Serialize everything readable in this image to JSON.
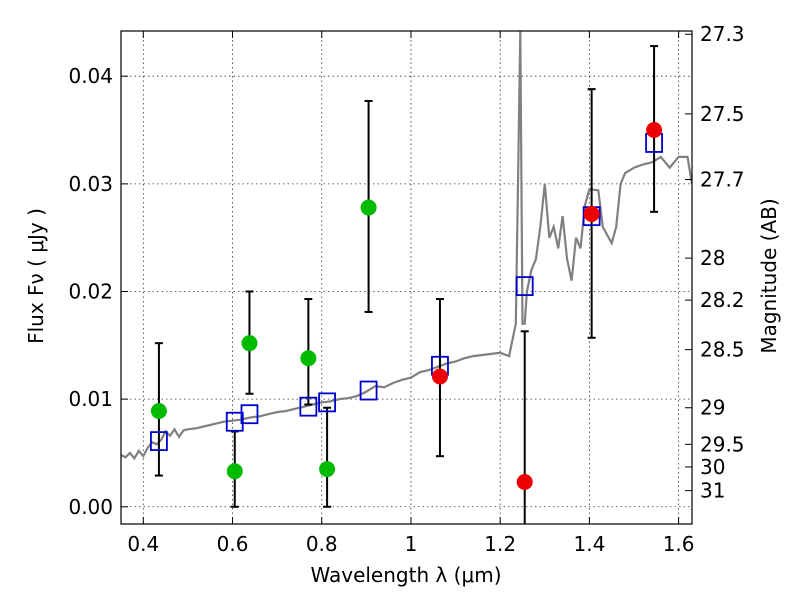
{
  "chart_data": {
    "type": "scatter",
    "title": "",
    "xlabel": "Wavelength  λ (μm)",
    "ylabel": "Flux  Fν  ( μJy )",
    "ylabel_right": "Magnitude (AB)",
    "xlim": [
      0.35,
      1.63
    ],
    "ylim": [
      -0.0016,
      0.0442
    ],
    "x_ticks": [
      0.4,
      0.6,
      0.8,
      1.0,
      1.2,
      1.4,
      1.6
    ],
    "x_tick_labels": [
      "0.4",
      "0.6",
      "0.8",
      "1",
      "1.2",
      "1.4",
      "1.6"
    ],
    "y_ticks": [
      0.0,
      0.01,
      0.02,
      0.03,
      0.04
    ],
    "y_tick_labels": [
      "0.00",
      "0.01",
      "0.02",
      "0.03",
      "0.04"
    ],
    "right_ticks": [
      {
        "mag": "27.3",
        "flux": 0.0439
      },
      {
        "mag": "27.5",
        "flux": 0.0365
      },
      {
        "mag": "27.7",
        "flux": 0.0304
      },
      {
        "mag": "28",
        "flux": 0.0231
      },
      {
        "mag": "28.2",
        "flux": 0.0192
      },
      {
        "mag": "28.5",
        "flux": 0.0146
      },
      {
        "mag": "29",
        "flux": 0.0092
      },
      {
        "mag": "29.5",
        "flux": 0.0058
      },
      {
        "mag": "30",
        "flux": 0.0037
      },
      {
        "mag": "31",
        "flux": 0.0015
      }
    ],
    "grid": true,
    "series": [
      {
        "kind": "line",
        "color": "#808080",
        "x": [
          0.35,
          0.36,
          0.37,
          0.38,
          0.39,
          0.4,
          0.41,
          0.42,
          0.43,
          0.44,
          0.45,
          0.46,
          0.47,
          0.48,
          0.49,
          0.5,
          0.52,
          0.54,
          0.56,
          0.58,
          0.6,
          0.62,
          0.64,
          0.66,
          0.68,
          0.7,
          0.72,
          0.74,
          0.76,
          0.78,
          0.8,
          0.82,
          0.84,
          0.86,
          0.88,
          0.9,
          0.92,
          0.94,
          0.96,
          0.98,
          1.0,
          1.02,
          1.04,
          1.06,
          1.08,
          1.1,
          1.12,
          1.14,
          1.16,
          1.18,
          1.2,
          1.22,
          1.235,
          1.24,
          1.245,
          1.25,
          1.255,
          1.26,
          1.27,
          1.28,
          1.29,
          1.3,
          1.31,
          1.32,
          1.33,
          1.34,
          1.35,
          1.36,
          1.37,
          1.38,
          1.39,
          1.4,
          1.42,
          1.43,
          1.45,
          1.46,
          1.47,
          1.48,
          1.5,
          1.52,
          1.54,
          1.56,
          1.58,
          1.6,
          1.62,
          1.63
        ],
        "y": [
          0.0048,
          0.0046,
          0.005,
          0.0045,
          0.0052,
          0.0047,
          0.0055,
          0.006,
          0.0058,
          0.0062,
          0.007,
          0.0066,
          0.0072,
          0.0065,
          0.0071,
          0.0072,
          0.0073,
          0.0075,
          0.0077,
          0.0079,
          0.008,
          0.0081,
          0.0083,
          0.0084,
          0.0086,
          0.0088,
          0.0089,
          0.0091,
          0.0093,
          0.0095,
          0.0097,
          0.0098,
          0.01,
          0.0101,
          0.0103,
          0.0107,
          0.0112,
          0.0111,
          0.0115,
          0.0118,
          0.012,
          0.0125,
          0.0127,
          0.013,
          0.0133,
          0.0135,
          0.0138,
          0.014,
          0.0141,
          0.0142,
          0.0143,
          0.014,
          0.017,
          0.03,
          0.0442,
          0.017,
          0.017,
          0.02,
          0.022,
          0.023,
          0.026,
          0.03,
          0.025,
          0.026,
          0.024,
          0.027,
          0.023,
          0.021,
          0.025,
          0.024,
          0.028,
          0.0295,
          0.0294,
          0.026,
          0.0245,
          0.026,
          0.03,
          0.031,
          0.0315,
          0.0318,
          0.032,
          0.0325,
          0.0315,
          0.0325,
          0.0325,
          0.03
        ]
      },
      {
        "kind": "squares",
        "color": "#0000cc",
        "x": [
          0.435,
          0.605,
          0.638,
          0.77,
          0.812,
          0.905,
          1.065,
          1.255,
          1.405,
          1.545
        ],
        "y": [
          0.0061,
          0.0079,
          0.0086,
          0.0093,
          0.0097,
          0.0108,
          0.0131,
          0.0205,
          0.027,
          0.0338
        ]
      },
      {
        "kind": "points",
        "color": "#00bb00",
        "x": [
          0.435,
          0.605,
          0.638,
          0.77,
          0.812,
          0.905
        ],
        "y": [
          0.0089,
          0.0033,
          0.0152,
          0.0138,
          0.0035,
          0.0278
        ],
        "err_low": [
          0.0029,
          0.0,
          0.0105,
          0.0095,
          0.0,
          0.0181
        ],
        "err_high": [
          0.0152,
          0.007,
          0.02,
          0.0193,
          0.0092,
          0.0377
        ]
      },
      {
        "kind": "points",
        "color": "#ee0000",
        "x": [
          1.065,
          1.255,
          1.405,
          1.545
        ],
        "y": [
          0.0121,
          0.0023,
          0.0272,
          0.035
        ],
        "err_low": [
          0.0047,
          -0.0016,
          0.0157,
          0.0274
        ],
        "err_high": [
          0.0193,
          0.0163,
          0.0388,
          0.0428
        ]
      }
    ]
  }
}
